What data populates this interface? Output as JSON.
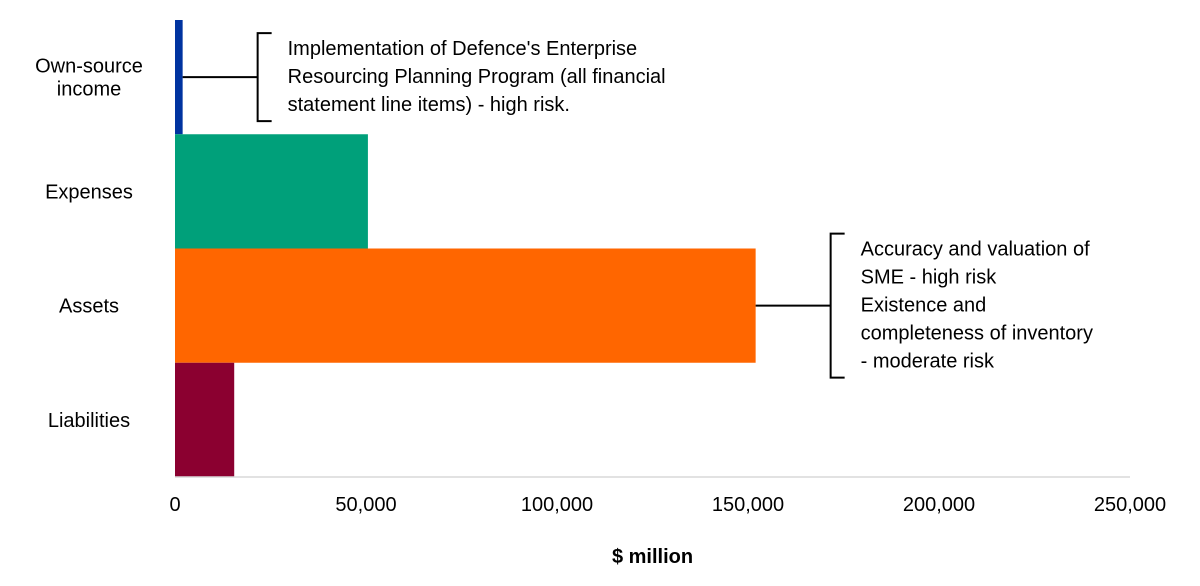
{
  "chart_data": {
    "type": "bar",
    "orientation": "horizontal",
    "categories": [
      "Own-source income",
      "Expenses",
      "Assets",
      "Liabilities"
    ],
    "category_lines": [
      [
        "Own-source",
        "income"
      ],
      [
        "Expenses"
      ],
      [
        "Assets"
      ],
      [
        "Liabilities"
      ]
    ],
    "values": [
      2000,
      50500,
      152000,
      15500
    ],
    "colors": [
      "#0033a0",
      "#00a07a",
      "#ff6600",
      "#8b0030"
    ],
    "xlabel": "$ million",
    "ylabel": "",
    "title": "",
    "xlim": [
      0,
      250000
    ],
    "x_ticks": [
      0,
      50000,
      100000,
      150000,
      200000,
      250000
    ],
    "x_tick_labels": [
      "0",
      "50,000",
      "100,000",
      "150,000",
      "200,000",
      "250,000"
    ],
    "grid": false,
    "legend": "none",
    "annotations": [
      {
        "category": "Own-source income",
        "lines": [
          "Implementation of Defence's Enterprise",
          "Resourcing Planning Program (all financial",
          "statement line items) - high risk."
        ]
      },
      {
        "category": "Assets",
        "lines": [
          "Accuracy and valuation of",
          "SME - high risk",
          "Existence and",
          "completeness of inventory",
          "- moderate risk"
        ]
      }
    ]
  }
}
